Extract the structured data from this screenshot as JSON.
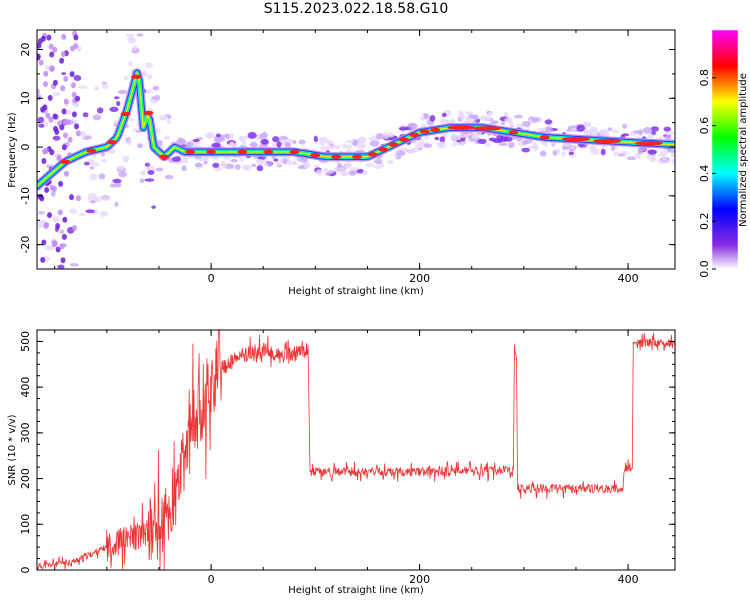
{
  "title": "S115.2023.022.18.58.G10",
  "chart_data": [
    {
      "type": "heatmap",
      "xlabel": "Height of straight line (km)",
      "ylabel": "Frequency (Hz)",
      "xlim": [
        -167,
        445
      ],
      "ylim": [
        -25,
        24
      ],
      "xticks": [
        0,
        200,
        400
      ],
      "yticks": [
        -20,
        -10,
        0,
        10,
        20
      ],
      "colorbar": {
        "label": "Normalized spectral amplitude",
        "range": [
          0,
          1
        ],
        "ticks": [
          0.0,
          0.2,
          0.4,
          0.6,
          0.8
        ]
      },
      "frequency_trace": {
        "x": [
          -167,
          -140,
          -120,
          -100,
          -90,
          -80,
          -70,
          -65,
          -60,
          -55,
          -45,
          -35,
          -25,
          0,
          25,
          50,
          80,
          110,
          130,
          150,
          170,
          200,
          230,
          260,
          290,
          320,
          360,
          400,
          445
        ],
        "y": [
          -8,
          -3,
          -1,
          0,
          2,
          8,
          16,
          4,
          7,
          0,
          -2,
          0,
          -1,
          -1,
          -1,
          -1,
          -1,
          -2,
          -2,
          -2,
          0,
          3,
          4,
          4,
          3,
          2,
          1.5,
          1,
          0.5
        ]
      }
    },
    {
      "type": "line",
      "xlabel": "Height of straight line (km)",
      "ylabel": "SNR (10 * v/v)",
      "xlim": [
        -167,
        445
      ],
      "ylim": [
        0,
        525
      ],
      "xticks": [
        0,
        200,
        400
      ],
      "yticks": [
        0,
        100,
        200,
        300,
        400,
        500
      ],
      "color": "#ee3333",
      "series": [
        {
          "x": [
            -167,
            -150,
            -130,
            -110,
            -90,
            -70,
            -50,
            -35,
            -25,
            -15,
            -5,
            10,
            30,
            50,
            70,
            90,
            93,
            95,
            120,
            160,
            200,
            240,
            280,
            290,
            291,
            293,
            294,
            296,
            320,
            360,
            395,
            397,
            404,
            405,
            420,
            445
          ],
          "y": [
            8,
            12,
            20,
            40,
            60,
            75,
            90,
            140,
            250,
            330,
            390,
            440,
            470,
            480,
            465,
            480,
            480,
            215,
            215,
            215,
            215,
            215,
            218,
            218,
            490,
            460,
            180,
            178,
            178,
            178,
            178,
            225,
            225,
            495,
            497,
            495
          ]
        }
      ]
    }
  ]
}
